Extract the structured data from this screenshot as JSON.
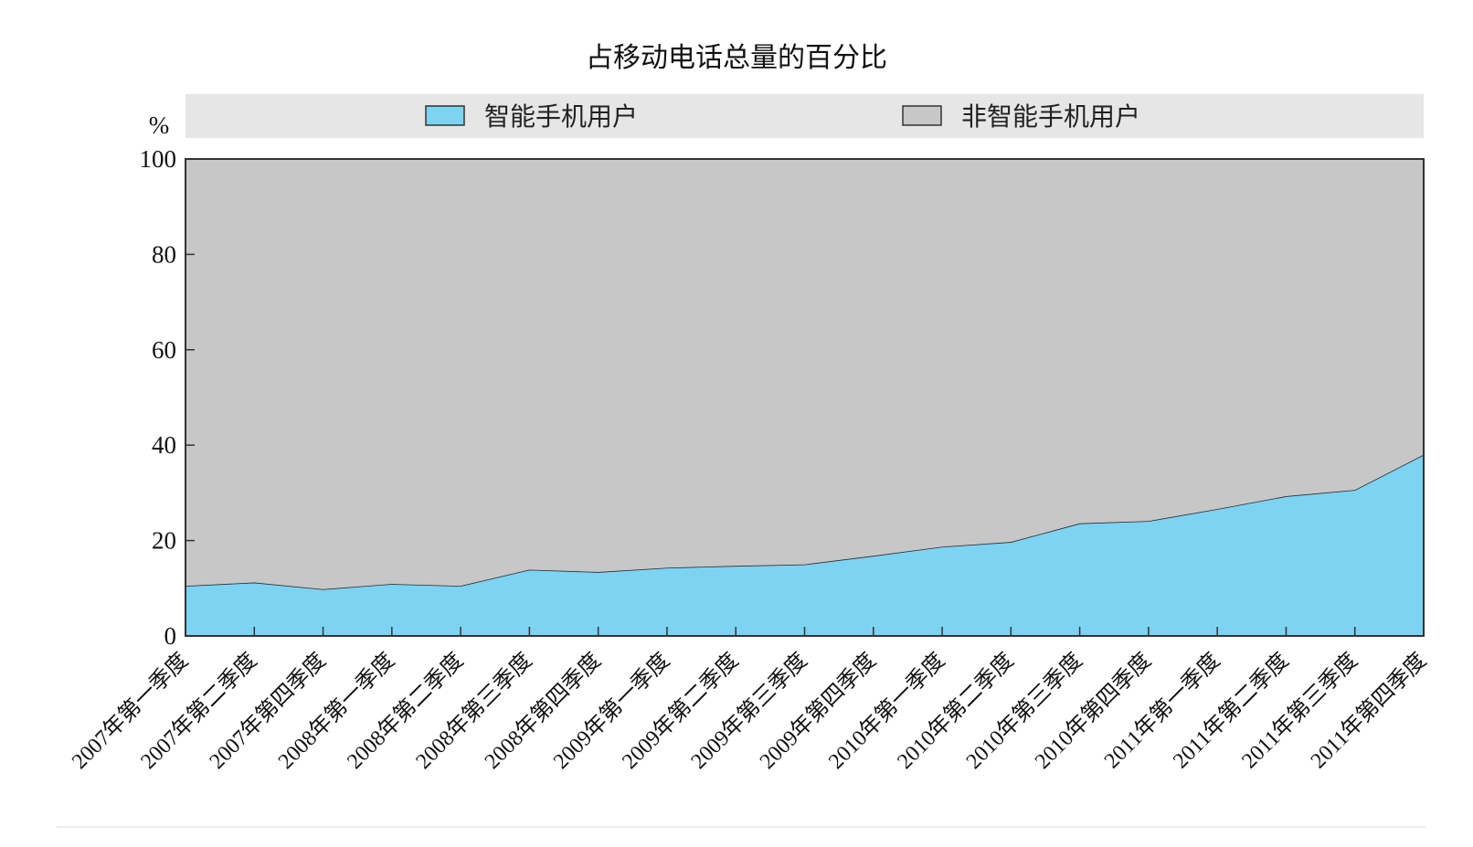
{
  "chart_data": {
    "type": "area",
    "stacked": true,
    "title": "占移动电话总量的百分比",
    "ylabel": "%",
    "ylim": [
      0,
      100
    ],
    "yticks": [
      "0",
      "20",
      "40",
      "60",
      "80",
      "100"
    ],
    "legend_position": "top",
    "categories": [
      "2007年第一季度",
      "2007年第二季度",
      "2007年第四季度",
      "2008年第一季度",
      "2008年第二季度",
      "2008年第三季度",
      "2008年第四季度",
      "2009年第一季度",
      "2009年第二季度",
      "2009年第三季度",
      "2009年第四季度",
      "2010年第一季度",
      "2010年第二季度",
      "2010年第三季度",
      "2010年第四季度",
      "2011年第一季度",
      "2011年第二季度",
      "2011年第三季度",
      "2011年第四季度"
    ],
    "series": [
      {
        "name": "智能手机用户",
        "color": "#7dd3f2",
        "values": [
          10.5,
          11.2,
          9.8,
          10.9,
          10.5,
          13.9,
          13.4,
          14.3,
          14.7,
          15.0,
          16.8,
          18.7,
          19.7,
          23.6,
          24.1,
          26.6,
          29.3,
          30.6,
          38.0
        ]
      },
      {
        "name": "非智能手机用户",
        "color": "#c8c7c8",
        "values": [
          89.5,
          88.8,
          90.2,
          89.1,
          89.5,
          86.1,
          86.6,
          85.7,
          85.3,
          85.0,
          83.2,
          81.3,
          80.3,
          76.4,
          75.9,
          73.4,
          70.7,
          69.4,
          62.0
        ]
      }
    ]
  }
}
